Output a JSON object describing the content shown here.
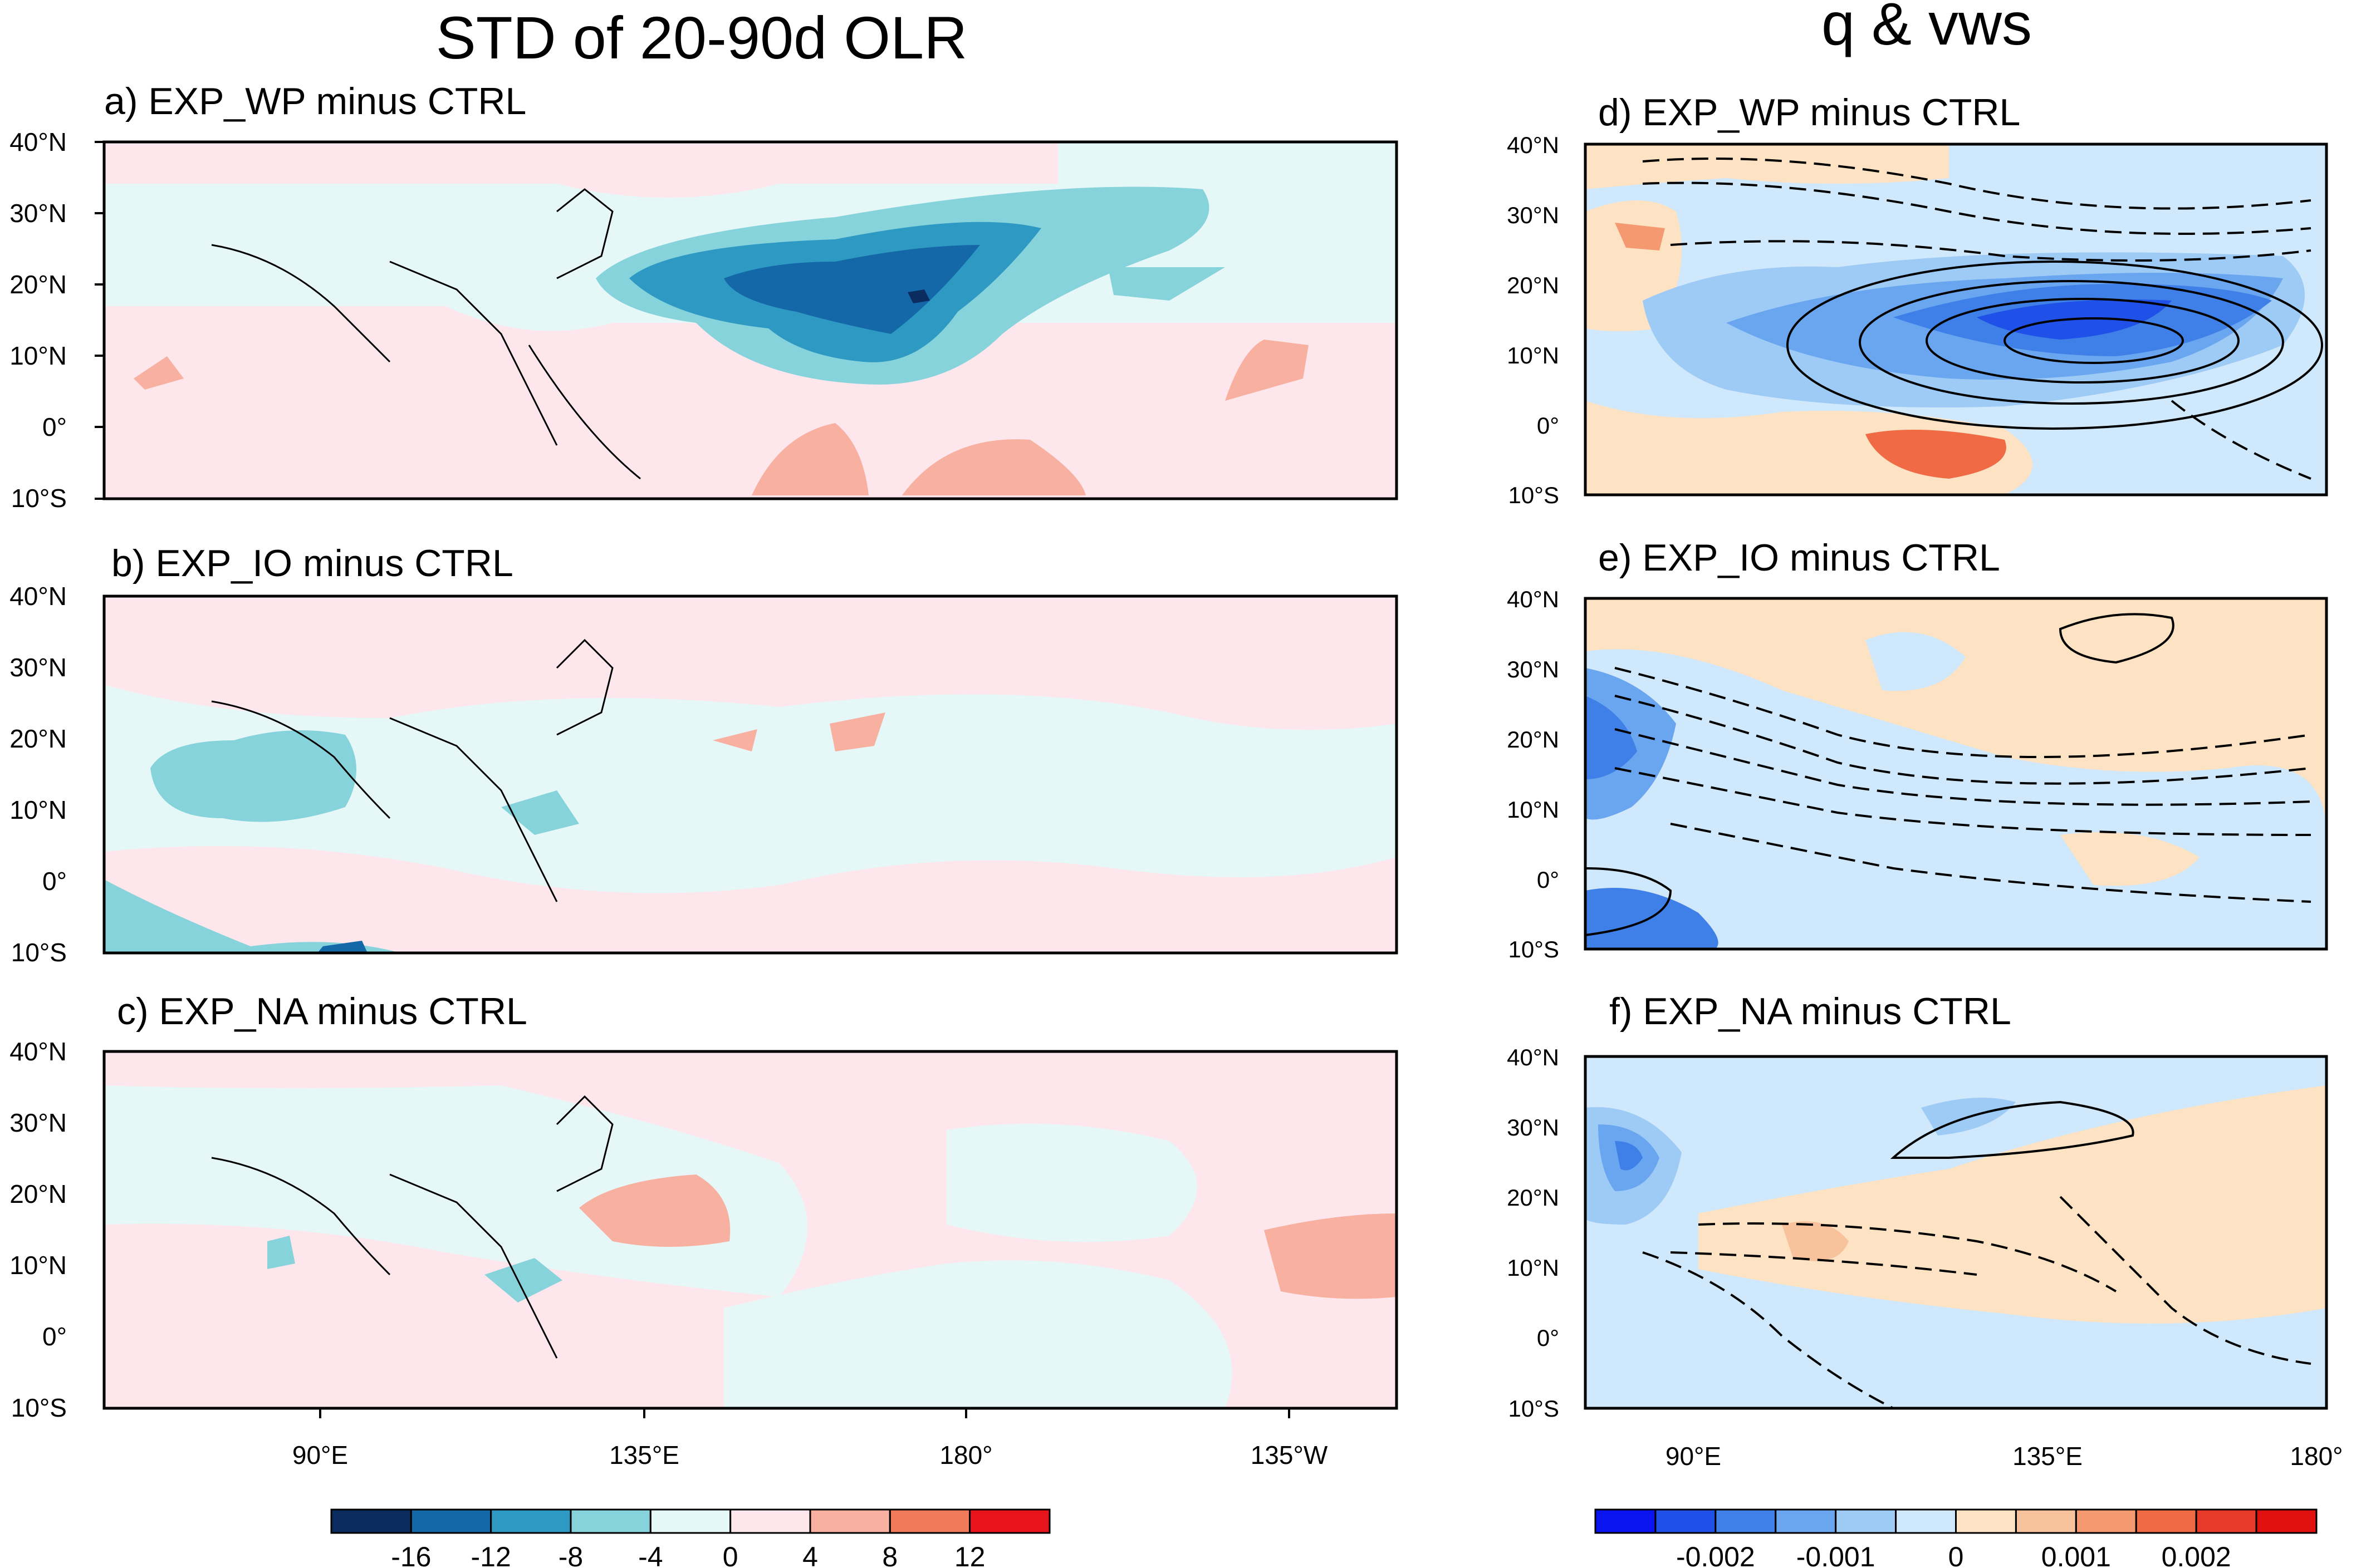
{
  "left_column": {
    "title": "STD of 20-90d OLR",
    "panels": [
      {
        "label": "a) EXP_WP minus CTRL"
      },
      {
        "label": "b) EXP_IO minus CTRL"
      },
      {
        "label": "c) EXP_NA minus CTRL"
      }
    ],
    "lat_ticks": [
      "40°N",
      "30°N",
      "20°N",
      "10°N",
      "0°",
      "10°S"
    ],
    "lon_ticks": [
      "90°E",
      "135°E",
      "180°",
      "135°W"
    ],
    "colorbar": {
      "labels": [
        "-16",
        "-12",
        "-8",
        "-4",
        "0",
        "4",
        "8",
        "12"
      ],
      "colors": [
        "#0b2c5e",
        "#1468a8",
        "#2e9ac4",
        "#86d3dc",
        "#e6f7f7",
        "#fde6ec",
        "#f8b0a0",
        "#f07a5a",
        "#e8141c"
      ]
    }
  },
  "right_column": {
    "title": "q & vws",
    "panels": [
      {
        "label": "d) EXP_WP minus CTRL"
      },
      {
        "label": "e) EXP_IO minus CTRL"
      },
      {
        "label": "f) EXP_NA minus CTRL"
      }
    ],
    "lat_ticks": [
      "40°N",
      "30°N",
      "20°N",
      "10°N",
      "0°",
      "10°S"
    ],
    "lon_ticks": [
      "90°E",
      "135°E",
      "180°"
    ],
    "colorbar": {
      "labels": [
        "-0.002",
        "-0.001",
        "0",
        "0.001",
        "0.002"
      ],
      "colors": [
        "#0a14f0",
        "#1f50e8",
        "#3f7fe8",
        "#6aa6f0",
        "#9ecbf5",
        "#cfe8fb",
        "#fde2c4",
        "#f8c29c",
        "#f59a70",
        "#ef6a45",
        "#e83a28",
        "#e01010"
      ]
    }
  },
  "chart_data": [
    {
      "type": "contour-map",
      "title": "STD of 20-90d OLR",
      "panels": [
        "a) EXP_WP minus CTRL",
        "b) EXP_IO minus CTRL",
        "c) EXP_NA minus CTRL"
      ],
      "lon_range": [
        60,
        240
      ],
      "lat_range": [
        -10,
        40
      ],
      "contour_levels": [
        -16,
        -12,
        -8,
        -4,
        0,
        4,
        8,
        12
      ],
      "variable": "20-90d OLR standard deviation difference"
    },
    {
      "type": "contour-map",
      "title": "q & vws",
      "panels": [
        "d) EXP_WP minus CTRL",
        "e) EXP_IO minus CTRL",
        "f) EXP_NA minus CTRL"
      ],
      "lon_range": [
        75,
        180
      ],
      "lat_range": [
        -10,
        40
      ],
      "shading_levels": [
        -0.002,
        -0.001,
        0,
        0.001,
        0.002
      ],
      "variable": "specific humidity (shaded) and vertical wind shear (contours)"
    }
  ]
}
